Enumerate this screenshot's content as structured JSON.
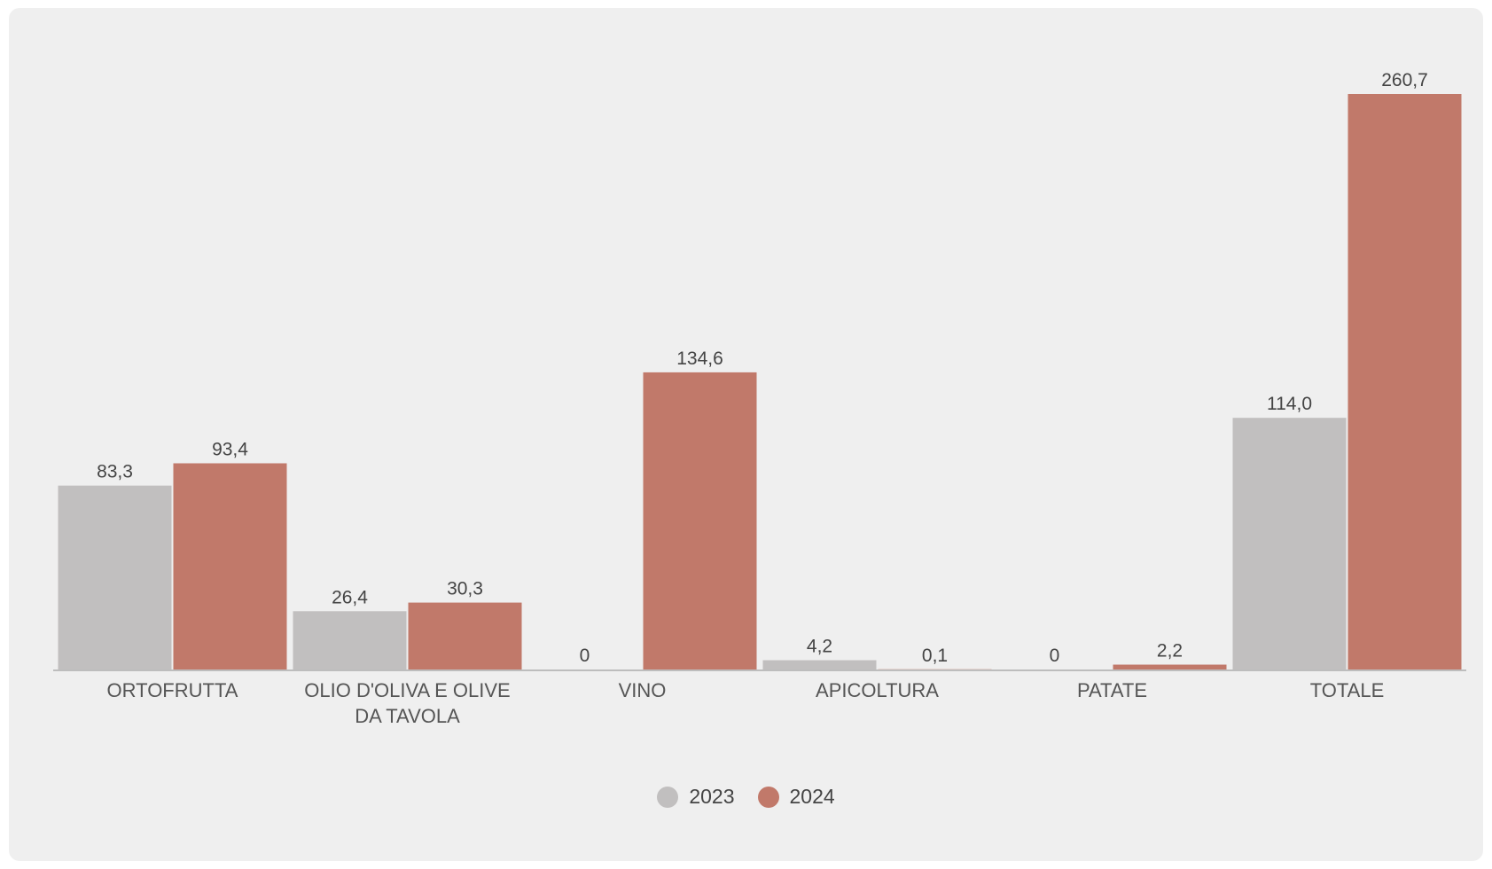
{
  "chart_data": {
    "type": "bar",
    "categories": [
      [
        "ORTOFRUTTA"
      ],
      [
        "OLIO D'OLIVA E OLIVE",
        "DA TAVOLA"
      ],
      [
        "VINO"
      ],
      [
        "APICOLTURA"
      ],
      [
        "PATATE"
      ],
      [
        "TOTALE"
      ]
    ],
    "series": [
      {
        "name": "2023",
        "color": "#c1bfbf",
        "values": [
          83.3,
          26.4,
          0,
          4.2,
          0,
          114.0
        ],
        "labels": [
          "83,3",
          "26,4",
          "0",
          "4,2",
          "0",
          "114,0"
        ]
      },
      {
        "name": "2024",
        "color": "#c1796a",
        "values": [
          93.4,
          30.3,
          134.6,
          0.1,
          2.2,
          260.7
        ],
        "labels": [
          "93,4",
          "30,3",
          "134,6",
          "0,1",
          "2,2",
          "260,7"
        ]
      }
    ],
    "ylim": [
      0,
      260.7
    ],
    "grid": false,
    "legend_position": "bottom-center"
  }
}
